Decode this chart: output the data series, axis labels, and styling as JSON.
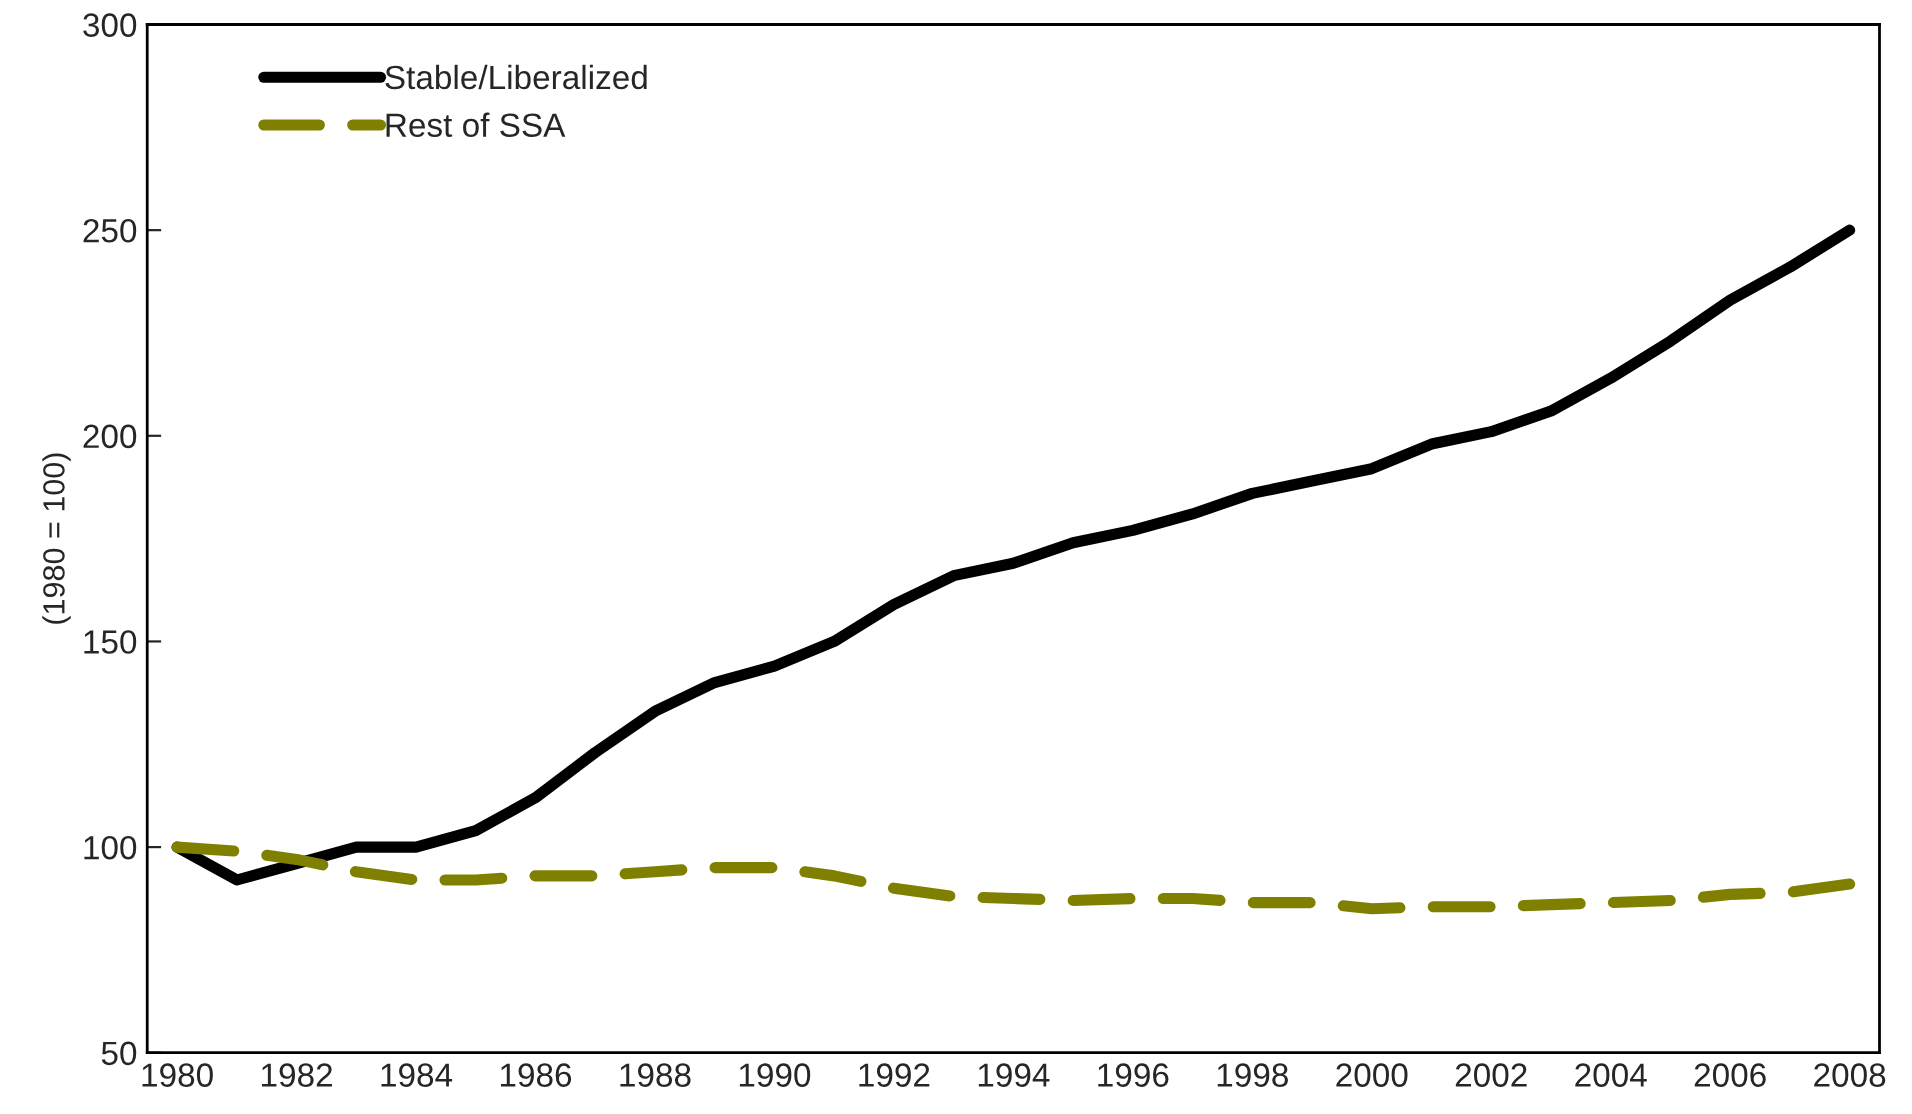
{
  "chart_data": {
    "type": "line",
    "ylabel": "(1980 = 100)",
    "categories": [
      "1980",
      null,
      "1982",
      null,
      "1984",
      null,
      "1986",
      null,
      "1988",
      null,
      "1990",
      null,
      "1992",
      null,
      "1994",
      null,
      "1996",
      null,
      "1998",
      null,
      "2000",
      null,
      "2002",
      null,
      "2004",
      null,
      "2006",
      null,
      "2008"
    ],
    "series": [
      {
        "name": "Stable/Liberalized",
        "color": "#000000",
        "line_style": "solid",
        "values": [
          100,
          92,
          96,
          100,
          100,
          104,
          112,
          123,
          133,
          140,
          144,
          150,
          159,
          166,
          169,
          174,
          177,
          181,
          186,
          189,
          192,
          198,
          201,
          206,
          214,
          223,
          233,
          241,
          250
        ]
      },
      {
        "name": "Rest of SSA",
        "color": "#808000",
        "line_style": "dashed",
        "values": [
          100,
          99,
          97,
          94,
          92,
          92,
          93,
          93,
          94,
          95,
          95,
          93,
          90,
          88,
          87.5,
          87,
          87.5,
          87.5,
          86.5,
          86.5,
          85,
          85.5,
          85.5,
          86,
          86.5,
          87,
          88.5,
          89,
          91
        ]
      }
    ],
    "ylim": [
      50,
      300
    ],
    "yticks": [
      50,
      100,
      150,
      200,
      250,
      300
    ],
    "grid": false,
    "legend": "top left"
  }
}
